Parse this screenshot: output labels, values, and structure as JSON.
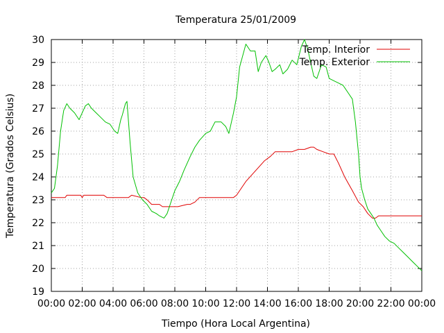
{
  "chart_data": {
    "type": "line",
    "title": "Temperatura 25/01/2009",
    "xlabel": "Tiempo (Hora Local Argentina)",
    "ylabel": "Temperatura (Grados Celsius)",
    "xlim": [
      0,
      24
    ],
    "ylim": [
      19,
      30
    ],
    "x_ticks": [
      0,
      2,
      4,
      6,
      8,
      10,
      12,
      14,
      16,
      18,
      20,
      22,
      24
    ],
    "x_tick_labels": [
      "00:00",
      "02:00",
      "04:00",
      "06:00",
      "08:00",
      "10:00",
      "12:00",
      "14:00",
      "16:00",
      "18:00",
      "20:00",
      "22:00",
      "00:00"
    ],
    "y_ticks": [
      19,
      20,
      21,
      22,
      23,
      24,
      25,
      26,
      27,
      28,
      29,
      30
    ],
    "y_tick_labels": [
      "19",
      "20",
      "21",
      "22",
      "23",
      "24",
      "25",
      "26",
      "27",
      "28",
      "29",
      "30"
    ],
    "grid": true,
    "legend_position": "top-right",
    "series": [
      {
        "name": "Temp. Interior",
        "color": "#e00000",
        "x": [
          0,
          0.5,
          0.9,
          1.0,
          1.9,
          2.0,
          2.1,
          3.4,
          3.6,
          5.0,
          5.2,
          5.8,
          6.0,
          6.2,
          6.5,
          7.0,
          7.2,
          8.0,
          8.2,
          8.8,
          9.0,
          9.3,
          9.6,
          10.0,
          11.0,
          11.8,
          12.0,
          12.3,
          12.6,
          13.0,
          13.4,
          13.8,
          14.2,
          14.5,
          15.0,
          15.6,
          16.0,
          16.4,
          16.8,
          17.0,
          17.2,
          17.6,
          18.0,
          18.3,
          18.6,
          19.0,
          19.5,
          19.9,
          20.2,
          20.5,
          20.8,
          21.0,
          21.2,
          21.5,
          22.0,
          23.0,
          24.0
        ],
        "y": [
          23.1,
          23.1,
          23.1,
          23.2,
          23.2,
          23.1,
          23.2,
          23.2,
          23.1,
          23.1,
          23.2,
          23.1,
          23.1,
          23.0,
          22.8,
          22.8,
          22.7,
          22.7,
          22.7,
          22.8,
          22.8,
          22.9,
          23.1,
          23.1,
          23.1,
          23.1,
          23.2,
          23.5,
          23.8,
          24.1,
          24.4,
          24.7,
          24.9,
          25.1,
          25.1,
          25.1,
          25.2,
          25.2,
          25.3,
          25.3,
          25.2,
          25.1,
          25.0,
          25.0,
          24.6,
          24.0,
          23.4,
          22.9,
          22.7,
          22.4,
          22.2,
          22.2,
          22.3,
          22.3,
          22.3,
          22.3,
          22.3
        ]
      },
      {
        "name": "Temp. Exterior",
        "color": "#00c000",
        "x": [
          0,
          0.2,
          0.4,
          0.6,
          0.8,
          1.0,
          1.2,
          1.5,
          1.8,
          2.0,
          2.2,
          2.4,
          2.6,
          2.9,
          3.2,
          3.5,
          3.8,
          4.1,
          4.3,
          4.5,
          4.6,
          4.8,
          4.9,
          5.1,
          5.3,
          5.6,
          5.9,
          6.2,
          6.5,
          6.8,
          7.0,
          7.3,
          7.5,
          7.7,
          8.0,
          8.3,
          8.6,
          9.0,
          9.3,
          9.6,
          10.0,
          10.3,
          10.6,
          11.0,
          11.3,
          11.5,
          11.8,
          12.0,
          12.2,
          12.4,
          12.6,
          12.9,
          13.2,
          13.4,
          13.6,
          13.9,
          14.1,
          14.3,
          14.5,
          14.8,
          15.0,
          15.3,
          15.6,
          15.9,
          16.2,
          16.4,
          16.6,
          16.8,
          17.0,
          17.2,
          17.5,
          17.8,
          18.0,
          18.3,
          18.6,
          18.9,
          19.2,
          19.5,
          19.7,
          19.9,
          20.0,
          20.1,
          20.3,
          20.5,
          20.7,
          20.9,
          21.1,
          21.3,
          21.6,
          21.9,
          22.2,
          22.5,
          22.8,
          23.1,
          23.4,
          23.7,
          24.0
        ],
        "y": [
          23.3,
          23.5,
          24.5,
          26.0,
          26.9,
          27.2,
          27.0,
          26.8,
          26.5,
          26.8,
          27.1,
          27.2,
          27.0,
          26.8,
          26.6,
          26.4,
          26.3,
          26.0,
          25.9,
          26.5,
          26.7,
          27.2,
          27.3,
          25.5,
          24.0,
          23.3,
          23.0,
          22.8,
          22.5,
          22.4,
          22.3,
          22.2,
          22.4,
          22.8,
          23.4,
          23.8,
          24.3,
          24.9,
          25.3,
          25.6,
          25.9,
          26.0,
          26.4,
          26.4,
          26.2,
          25.9,
          26.8,
          27.5,
          28.8,
          29.3,
          29.8,
          29.5,
          29.5,
          28.6,
          29.0,
          29.3,
          29.0,
          28.6,
          28.7,
          28.9,
          28.5,
          28.7,
          29.1,
          28.9,
          29.7,
          30.0,
          29.6,
          29.0,
          28.4,
          28.3,
          28.9,
          28.8,
          28.3,
          28.2,
          28.1,
          28.0,
          27.7,
          27.4,
          26.4,
          25.0,
          24.0,
          23.5,
          23.0,
          22.6,
          22.4,
          22.2,
          21.9,
          21.7,
          21.4,
          21.2,
          21.1,
          20.9,
          20.7,
          20.5,
          20.3,
          20.1,
          19.9
        ]
      }
    ]
  }
}
